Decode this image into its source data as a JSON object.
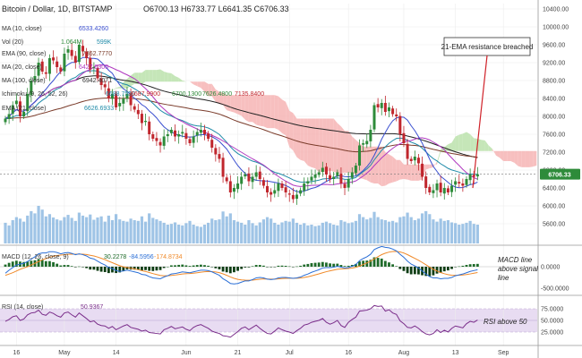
{
  "header": {
    "symbol": "Bitcoin / Dollar, 1D, BITSTAMP",
    "ohlc": "O6700.13  H6733.77  L6641.35  C6706.33"
  },
  "colors": {
    "up": "#2e8b3a",
    "down": "#c0262d",
    "ma10": "#3a4fd0",
    "ma20": "#b03ac0",
    "ema21": "#1f8aa8",
    "ema90": "#7a3b2a",
    "ma100": "#222222",
    "kumo_bear": "#f6b8b8",
    "kumo_bull": "#bfe3b0",
    "macd": "#2b6fd6",
    "signal": "#f08a2a",
    "hist_up": "#1f6b2a",
    "hist_dn": "#0e3d14",
    "rsi": "#7a2d8a",
    "rsi_band": "#e8dcf2",
    "volume": "#7fb0dd",
    "annotation": "#d0232a"
  },
  "legend": {
    "ma10": "MA (10, close)",
    "ma10_val": "6533.4260",
    "vol": "Vol (20)",
    "vol_a": "1.064M",
    "vol_b": "599K",
    "ema90": "EMA (90, close)",
    "ema90_val": "7362.7770",
    "ma20": "MA (20, close)",
    "ma20_val": "6427.0300",
    "ma100": "MA (100, close)",
    "ma100_val": "6942.4071",
    "ichimoku": "Ichimoku (9, 26, 52, 26)",
    "ich1": "6688.7550",
    "ich2": "6687.9900",
    "ich3": "6700.1300",
    "ich4": "7626.4800",
    "ich5": "7135.8400",
    "ema21": "EMA (21, close)",
    "ema21_val": "6626.6933",
    "macd": "MACD (12, 26, close, 9)",
    "macd_a": "30.2278",
    "macd_b": "-84.5956",
    "macd_c": "-174.8734",
    "rsi": "RSI (14, close)",
    "rsi_val": "50.9367"
  },
  "price_label": "6706.33",
  "annotations": {
    "ema_breach": "21-EMA resistance breached",
    "macd_note": [
      "MACD line",
      "above signal",
      "line"
    ],
    "rsi_note": "RSI above 50"
  },
  "chart_data": {
    "type": "candlestick",
    "x_ticks": [
      "16",
      "May",
      "14",
      "Jun",
      "21",
      "Jul",
      "16",
      "Aug",
      "13",
      "Sep"
    ],
    "y_ticks": [
      "10400.00",
      "10000.00",
      "9600.00",
      "9200.00",
      "8800.00",
      "8400.00",
      "8000.00",
      "7600.00",
      "7200.00",
      "6800.00",
      "6400.00",
      "6000.00",
      "5600.00"
    ],
    "ylim": [
      5500,
      10450
    ],
    "macd_ticks": [
      "0.0000",
      "-500.0000"
    ],
    "rsi_ticks": [
      "75.0000",
      "50.0000",
      "25.0000"
    ],
    "close": [
      7950,
      8050,
      8250,
      8350,
      8000,
      8100,
      8500,
      8800,
      8900,
      9200,
      9000,
      8950,
      9300,
      9250,
      9100,
      9000,
      9400,
      9500,
      9350,
      9200,
      9600,
      9450,
      9300,
      9050,
      9100,
      8850,
      8700,
      8650,
      8400,
      8500,
      8200,
      8300,
      8400,
      8500,
      8250,
      8150,
      8050,
      7850,
      7900,
      7600,
      7500,
      7450,
      7350,
      7550,
      7600,
      7700,
      7550,
      7600,
      7650,
      7500,
      7400,
      7550,
      7650,
      7700,
      7600,
      7500,
      7300,
      7150,
      7050,
      6650,
      6550,
      6300,
      6400,
      6500,
      6650,
      6700,
      6550,
      6650,
      6750,
      6600,
      6450,
      6300,
      6250,
      6350,
      6500,
      6400,
      6300,
      6250,
      6150,
      6250,
      6350,
      6500,
      6550,
      6650,
      6700,
      6750,
      6850,
      6700,
      6600,
      6650,
      6750,
      6500,
      6400,
      6600,
      6750,
      6900,
      7350,
      7400,
      7450,
      7700,
      8250,
      8200,
      8300,
      8100,
      8200,
      8050,
      8000,
      7600,
      7400,
      7050,
      7000,
      7100,
      6950,
      6650,
      6400,
      6300,
      6350,
      6500,
      6300,
      6400,
      6300,
      6450,
      6550,
      6500,
      6450,
      6600,
      6700,
      6650,
      6706.33
    ],
    "volume": [
      0.55,
      0.48,
      0.62,
      0.7,
      0.66,
      0.58,
      0.74,
      0.86,
      0.8,
      1.0,
      0.9,
      0.72,
      0.78,
      0.69,
      0.64,
      0.61,
      0.7,
      0.76,
      0.68,
      0.6,
      0.82,
      0.74,
      0.7,
      0.77,
      0.63,
      0.69,
      0.72,
      0.58,
      0.74,
      0.62,
      0.78,
      0.64,
      0.6,
      0.58,
      0.66,
      0.62,
      0.6,
      0.72,
      0.58,
      0.8,
      0.68,
      0.64,
      0.6,
      0.55,
      0.5,
      0.52,
      0.56,
      0.5,
      0.48,
      0.54,
      0.6,
      0.5,
      0.46,
      0.44,
      0.5,
      0.55,
      0.66,
      0.62,
      0.64,
      0.85,
      0.72,
      0.8,
      0.62,
      0.58,
      0.55,
      0.5,
      0.62,
      0.54,
      0.48,
      0.56,
      0.64,
      0.7,
      0.66,
      0.55,
      0.5,
      0.56,
      0.6,
      0.58,
      0.66,
      0.55,
      0.5,
      0.54,
      0.48,
      0.5,
      0.46,
      0.48,
      0.55,
      0.58,
      0.54,
      0.5,
      0.48,
      0.62,
      0.58,
      0.54,
      0.56,
      0.6,
      0.78,
      0.7,
      0.64,
      0.68,
      0.84,
      0.7,
      0.64,
      0.62,
      0.58,
      0.6,
      0.56,
      0.7,
      0.72,
      0.82,
      0.7,
      0.62,
      0.66,
      0.8,
      0.86,
      0.78,
      0.64,
      0.58,
      0.66,
      0.6,
      0.62,
      0.56,
      0.54,
      0.5,
      0.52,
      0.55,
      0.6,
      0.52,
      0.5
    ],
    "macd": [
      -150,
      -80,
      -20,
      40,
      60,
      80,
      120,
      180,
      230,
      300,
      320,
      320,
      350,
      350,
      330,
      300,
      320,
      330,
      310,
      280,
      300,
      280,
      250,
      200,
      180,
      130,
      80,
      40,
      -20,
      -40,
      -90,
      -110,
      -100,
      -80,
      -100,
      -120,
      -140,
      -180,
      -190,
      -230,
      -260,
      -270,
      -280,
      -240,
      -210,
      -170,
      -160,
      -140,
      -120,
      -130,
      -140,
      -120,
      -100,
      -80,
      -80,
      -90,
      -120,
      -160,
      -200,
      -280,
      -330,
      -390,
      -400,
      -390,
      -360,
      -330,
      -330,
      -300,
      -260,
      -250,
      -260,
      -290,
      -300,
      -290,
      -260,
      -250,
      -250,
      -260,
      -270,
      -260,
      -240,
      -200,
      -170,
      -130,
      -100,
      -70,
      -30,
      -20,
      -20,
      -10,
      10,
      -10,
      -30,
      -20,
      10,
      50,
      140,
      190,
      230,
      290,
      400,
      440,
      470,
      450,
      440,
      410,
      370,
      290,
      220,
      130,
      60,
      20,
      -30,
      -100,
      -170,
      -230,
      -260,
      -260,
      -280,
      -270,
      -270,
      -250,
      -210,
      -190,
      -170,
      -140,
      -110,
      -90,
      -70
    ],
    "signal": [
      -200,
      -170,
      -140,
      -100,
      -60,
      -30,
      0,
      40,
      80,
      120,
      160,
      190,
      220,
      245,
      260,
      270,
      280,
      290,
      295,
      292,
      294,
      291,
      283,
      266,
      249,
      225,
      196,
      165,
      128,
      94,
      57,
      23,
      -2,
      -18,
      -34,
      -52,
      -69,
      -91,
      -111,
      -135,
      -160,
      -182,
      -202,
      -210,
      -210,
      -202,
      -194,
      -183,
      -170,
      -162,
      -158,
      -150,
      -140,
      -128,
      -118,
      -113,
      -114,
      -123,
      -139,
      -167,
      -200,
      -238,
      -271,
      -294,
      -307,
      -312,
      -315,
      -312,
      -301,
      -291,
      -285,
      -286,
      -289,
      -289,
      -283,
      -276,
      -271,
      -269,
      -269,
      -267,
      -262,
      -250,
      -234,
      -213,
      -191,
      -167,
      -140,
      -116,
      -97,
      -79,
      -61,
      -51,
      -47,
      -42,
      -32,
      -15,
      16,
      51,
      87,
      128,
      182,
      234,
      281,
      315,
      340,
      354,
      357,
      344,
      319,
      281,
      237,
      194,
      149,
      99,
      45,
      -10,
      -60,
      -100,
      -136,
      -163,
      -184,
      -197,
      -200,
      -198,
      -192,
      -182,
      -168,
      -152,
      -136
    ],
    "rsi": [
      48,
      52,
      58,
      60,
      50,
      53,
      62,
      66,
      67,
      72,
      63,
      61,
      68,
      65,
      60,
      57,
      66,
      68,
      62,
      57,
      66,
      60,
      54,
      47,
      49,
      42,
      39,
      38,
      33,
      37,
      30,
      34,
      38,
      41,
      35,
      33,
      31,
      27,
      29,
      24,
      23,
      22,
      21,
      30,
      33,
      37,
      32,
      34,
      36,
      31,
      28,
      35,
      39,
      41,
      37,
      33,
      27,
      24,
      22,
      17,
      16,
      14,
      20,
      26,
      33,
      36,
      30,
      35,
      40,
      33,
      27,
      22,
      21,
      27,
      34,
      30,
      27,
      25,
      22,
      28,
      33,
      40,
      42,
      46,
      48,
      50,
      54,
      46,
      42,
      45,
      50,
      39,
      35,
      46,
      52,
      57,
      70,
      71,
      72,
      75,
      82,
      80,
      81,
      70,
      73,
      66,
      63,
      49,
      43,
      35,
      34,
      38,
      33,
      26,
      21,
      19,
      22,
      30,
      24,
      29,
      25,
      33,
      38,
      36,
      34,
      43,
      48,
      46,
      50.9
    ]
  }
}
